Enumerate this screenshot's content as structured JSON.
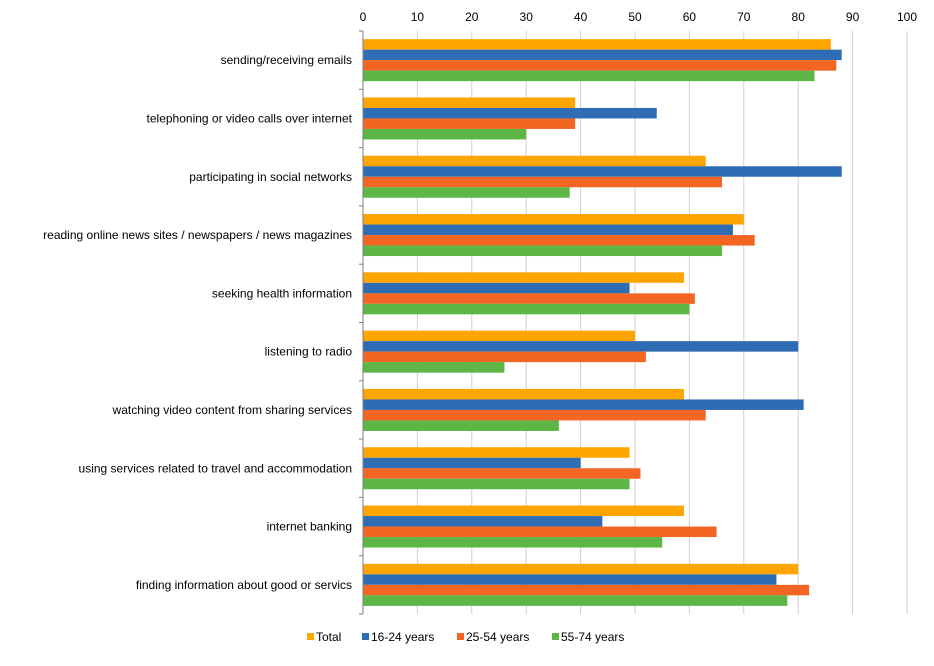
{
  "chart_data": {
    "type": "bar",
    "orientation": "horizontal",
    "title": "",
    "xlabel": "",
    "ylabel": "",
    "xlim": [
      0,
      100
    ],
    "x_ticks": [
      0,
      10,
      20,
      30,
      40,
      50,
      60,
      70,
      80,
      90,
      100
    ],
    "x_axis_position": "top",
    "grid": "vertical",
    "legend_position": "bottom",
    "categories": [
      "sending/receiving emails",
      "telephoning or video calls over internet",
      "participating in social networks",
      "reading online news sites / newspapers / news magazines",
      "seeking health information",
      "listening to radio",
      "watching video content from sharing services",
      "using services related to travel and accommodation",
      "internet banking",
      "finding information about good or servics"
    ],
    "series": [
      {
        "name": "Total",
        "color": "#FFA500",
        "values": [
          86,
          39,
          63,
          70,
          59,
          50,
          59,
          49,
          59,
          80
        ]
      },
      {
        "name": "16-24 years",
        "color": "#2E6DB4",
        "values": [
          88,
          54,
          88,
          68,
          49,
          80,
          81,
          40,
          44,
          76
        ]
      },
      {
        "name": "25-54 years",
        "color": "#F26522",
        "values": [
          87,
          39,
          66,
          72,
          61,
          52,
          63,
          51,
          65,
          82
        ]
      },
      {
        "name": "55-74 years",
        "color": "#5DB646",
        "values": [
          83,
          30,
          38,
          66,
          60,
          26,
          36,
          49,
          55,
          78
        ]
      }
    ]
  }
}
